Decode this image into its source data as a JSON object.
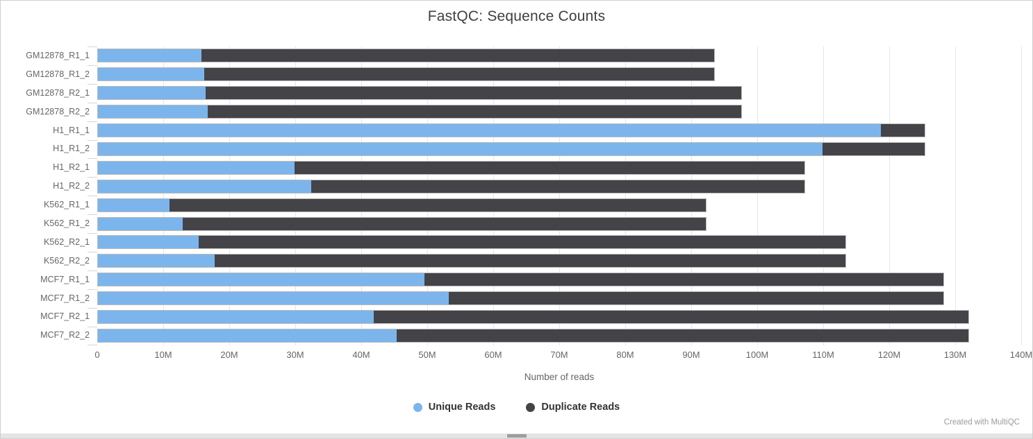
{
  "title": "FastQC: Sequence Counts",
  "footer": "Created with MultiQC",
  "colors": {
    "unique": "#7cb5ec",
    "duplicate": "#434348",
    "grid": "#e6e6e6",
    "axis_text": "#666666",
    "title_text": "#3f3f3f",
    "bar_border": "#b9b9b9"
  },
  "chart_data": {
    "type": "bar",
    "orientation": "horizontal",
    "stacked": true,
    "title": "FastQC: Sequence Counts",
    "xlabel": "Number of reads",
    "grid": true,
    "legend_position": "bottom",
    "xlim_M": [
      0,
      140
    ],
    "x_ticks": [
      "0",
      "10M",
      "20M",
      "30M",
      "40M",
      "50M",
      "60M",
      "70M",
      "80M",
      "90M",
      "100M",
      "110M",
      "120M",
      "130M",
      "140M"
    ],
    "categories": [
      "GM12878_R1_1",
      "GM12878_R1_2",
      "GM12878_R2_1",
      "GM12878_R2_2",
      "H1_R1_1",
      "H1_R1_2",
      "H1_R2_1",
      "H1_R2_2",
      "K562_R1_1",
      "K562_R1_2",
      "K562_R2_1",
      "K562_R2_2",
      "MCF7_R1_1",
      "MCF7_R1_2",
      "MCF7_R2_1",
      "MCF7_R2_2"
    ],
    "series": [
      {
        "name": "Unique Reads",
        "color": "#7cb5ec",
        "values_M": [
          15.7,
          16.1,
          16.4,
          16.7,
          118.8,
          110.0,
          29.8,
          32.4,
          10.9,
          12.9,
          15.3,
          17.7,
          49.6,
          53.2,
          41.9,
          45.3
        ]
      },
      {
        "name": "Duplicate Reads",
        "color": "#434348",
        "values_M": [
          77.9,
          77.5,
          81.3,
          81.0,
          6.7,
          15.5,
          77.5,
          74.9,
          81.4,
          79.4,
          98.2,
          95.8,
          78.7,
          75.1,
          90.2,
          86.8
        ]
      }
    ]
  }
}
